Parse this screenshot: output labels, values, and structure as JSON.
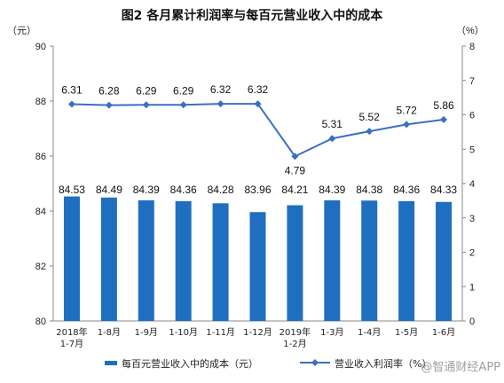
{
  "chart_data": {
    "type": "bar",
    "title": "图2  各月累计利润率与每百元营业收入中的成本",
    "left_unit": "（元）",
    "right_unit": "（%）",
    "categories": [
      [
        "2018年",
        "1-7月"
      ],
      [
        "1-8月"
      ],
      [
        "1-9月"
      ],
      [
        "1-10月"
      ],
      [
        "1-11月"
      ],
      [
        "1-12月"
      ],
      [
        "2019年",
        "1-2月"
      ],
      [
        "1-3月"
      ],
      [
        "1-4月"
      ],
      [
        "1-5月"
      ],
      [
        "1-6月"
      ]
    ],
    "series": [
      {
        "name": "每百元营业收入中的成本（元）",
        "type": "bar",
        "axis": "left",
        "values": [
          84.53,
          84.49,
          84.39,
          84.36,
          84.28,
          83.96,
          84.21,
          84.39,
          84.38,
          84.36,
          84.33
        ],
        "labels": [
          "84.53",
          "84.49",
          "84.39",
          "84.36",
          "84.28",
          "83.96",
          "84.21",
          "84.39",
          "84.38",
          "84.36",
          "84.33"
        ]
      },
      {
        "name": "营业收入利润率（%）",
        "type": "line",
        "axis": "right",
        "values": [
          6.31,
          6.28,
          6.29,
          6.29,
          6.32,
          6.32,
          4.79,
          5.31,
          5.52,
          5.72,
          5.86
        ],
        "labels": [
          "6.31",
          "6.28",
          "6.29",
          "6.29",
          "6.32",
          "6.32",
          "4.79",
          "5.31",
          "5.52",
          "5.72",
          "5.86"
        ]
      }
    ],
    "y_left": {
      "min": 80,
      "max": 90,
      "ticks": [
        "80",
        "82",
        "84",
        "86",
        "88",
        "90"
      ]
    },
    "y_right": {
      "min": 0,
      "max": 8,
      "ticks": [
        "0",
        "1",
        "2",
        "3",
        "4",
        "5",
        "6",
        "7",
        "8"
      ]
    },
    "colors": {
      "bar": "#1f6fc0",
      "line": "#3b6fc4"
    },
    "grid": false,
    "legend": "bottom"
  },
  "watermark": "@智通财经APP"
}
